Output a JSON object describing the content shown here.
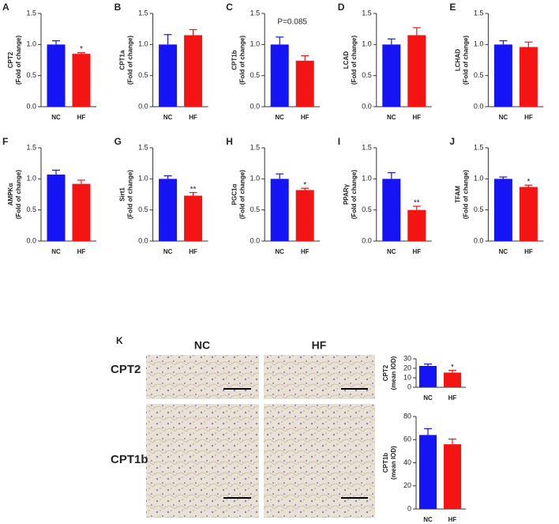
{
  "chart_data": [
    {
      "type": "bar",
      "panel": "A",
      "ylabel": [
        "CPT2",
        "(Fold of change)"
      ],
      "categories": [
        "NC",
        "HF"
      ],
      "values": [
        1.0,
        0.85
      ],
      "errors": [
        0.06,
        0.02
      ],
      "significance": [
        null,
        "*"
      ],
      "colors": [
        "#1414f5",
        "#f51414"
      ],
      "ylim": [
        0,
        1.5
      ],
      "yticks": [
        {
          "value": 0,
          "label": "0.0"
        },
        0.5,
        {
          "value": 1,
          "label": "1.0"
        },
        1.5
      ]
    },
    {
      "type": "bar",
      "panel": "B",
      "ylabel": [
        "CPT1a",
        "(Fold of change)"
      ],
      "categories": [
        "NC",
        "HF"
      ],
      "values": [
        1.0,
        1.15
      ],
      "errors": [
        0.16,
        0.09
      ],
      "colors": [
        "#1414f5",
        "#f51414"
      ],
      "ylim": [
        0,
        1.5
      ],
      "yticks": [
        {
          "value": 0,
          "label": "0.0"
        },
        0.5,
        {
          "value": 1,
          "label": "1.0"
        },
        1.5
      ]
    },
    {
      "type": "bar",
      "panel": "C",
      "ylabel": [
        "CPT1b",
        "(Fold of change)"
      ],
      "annotation": "P=0.085",
      "categories": [
        "NC",
        "HF"
      ],
      "values": [
        1.0,
        0.74
      ],
      "errors": [
        0.12,
        0.08
      ],
      "colors": [
        "#1414f5",
        "#f51414"
      ],
      "ylim": [
        0,
        1.5
      ],
      "yticks": [
        {
          "value": 0,
          "label": "0.0"
        },
        0.5,
        {
          "value": 1,
          "label": "1.0"
        },
        1.5
      ]
    },
    {
      "type": "bar",
      "panel": "D",
      "ylabel": [
        "LCAD",
        "(Fold of change)"
      ],
      "categories": [
        "NC",
        "HF"
      ],
      "values": [
        1.0,
        1.15
      ],
      "errors": [
        0.09,
        0.12
      ],
      "colors": [
        "#1414f5",
        "#f51414"
      ],
      "ylim": [
        0,
        1.5
      ],
      "yticks": [
        {
          "value": 0,
          "label": "0.0"
        },
        0.5,
        {
          "value": 1,
          "label": "1.0"
        },
        1.5
      ]
    },
    {
      "type": "bar",
      "panel": "E",
      "ylabel": [
        "LCHAD",
        "(Fold of change)"
      ],
      "categories": [
        "NC",
        "HF"
      ],
      "values": [
        1.0,
        0.96
      ],
      "errors": [
        0.06,
        0.08
      ],
      "colors": [
        "#1414f5",
        "#f51414"
      ],
      "ylim": [
        0,
        1.5
      ],
      "yticks": [
        {
          "value": 0,
          "label": "0.0"
        },
        0.5,
        {
          "value": 1,
          "label": "1.0"
        },
        1.5
      ]
    },
    {
      "type": "bar",
      "panel": "F",
      "ylabel": [
        "AMPKα",
        "(Fold of change)"
      ],
      "categories": [
        "NC",
        "HF"
      ],
      "values": [
        1.07,
        0.92
      ],
      "errors": [
        0.07,
        0.06
      ],
      "colors": [
        "#1414f5",
        "#f51414"
      ],
      "ylim": [
        0,
        1.5
      ],
      "yticks": [
        {
          "value": 0,
          "label": "0.0"
        },
        0.5,
        {
          "value": 1,
          "label": "1.0"
        },
        1.5
      ]
    },
    {
      "type": "bar",
      "panel": "G",
      "ylabel": [
        "Sirt1",
        "(Fold of change)"
      ],
      "categories": [
        "NC",
        "HF"
      ],
      "values": [
        1.0,
        0.73
      ],
      "errors": [
        0.05,
        0.05
      ],
      "significance": [
        null,
        "**"
      ],
      "colors": [
        "#1414f5",
        "#f51414"
      ],
      "ylim": [
        0,
        1.5
      ],
      "yticks": [
        {
          "value": 0,
          "label": "0.0"
        },
        0.5,
        {
          "value": 1,
          "label": "1.0"
        },
        1.5
      ]
    },
    {
      "type": "bar",
      "panel": "H",
      "ylabel": [
        "PGC1α",
        "(Fold of change)"
      ],
      "categories": [
        "NC",
        "HF"
      ],
      "values": [
        1.0,
        0.82
      ],
      "errors": [
        0.08,
        0.03
      ],
      "significance": [
        null,
        "*"
      ],
      "colors": [
        "#1414f5",
        "#f51414"
      ],
      "ylim": [
        0,
        1.5
      ],
      "yticks": [
        {
          "value": 0,
          "label": "0.0"
        },
        0.5,
        {
          "value": 1,
          "label": "1.0"
        },
        1.5
      ]
    },
    {
      "type": "bar",
      "panel": "I",
      "ylabel": [
        "PPARγ",
        "(Fold of change)"
      ],
      "categories": [
        "NC",
        "HF"
      ],
      "values": [
        1.0,
        0.5
      ],
      "errors": [
        0.1,
        0.06
      ],
      "significance": [
        null,
        "**"
      ],
      "colors": [
        "#1414f5",
        "#f51414"
      ],
      "ylim": [
        0,
        1.5
      ],
      "yticks": [
        {
          "value": 0,
          "label": "0.0"
        },
        0.5,
        {
          "value": 1,
          "label": "1.0"
        },
        1.5
      ]
    },
    {
      "type": "bar",
      "panel": "J",
      "ylabel": [
        "TFAM",
        "(Fold of change)"
      ],
      "categories": [
        "NC",
        "HF"
      ],
      "values": [
        1.0,
        0.87
      ],
      "errors": [
        0.03,
        0.03
      ],
      "significance": [
        null,
        "*"
      ],
      "colors": [
        "#1414f5",
        "#f51414"
      ],
      "ylim": [
        0,
        1.5
      ],
      "yticks": [
        {
          "value": 0,
          "label": "0.0"
        },
        0.5,
        {
          "value": 1,
          "label": "1.0"
        },
        1.5
      ]
    },
    {
      "type": "bar",
      "ylabel": [
        "CPT2",
        "(mean IOD)"
      ],
      "categories": [
        "NC",
        "HF"
      ],
      "values": [
        22.5,
        15.5
      ],
      "errors": [
        2.0,
        2.3
      ],
      "significance": [
        null,
        "*"
      ],
      "colors": [
        "#1414f5",
        "#f51414"
      ],
      "ylim": [
        0,
        30
      ],
      "yticks": [
        0,
        10,
        20,
        30
      ]
    },
    {
      "type": "bar",
      "ylabel": [
        "CPT1b",
        "(mean IOD)"
      ],
      "categories": [
        "NC",
        "HF"
      ],
      "values": [
        64,
        56
      ],
      "errors": [
        5.5,
        4.5
      ],
      "colors": [
        "#1414f5",
        "#f51414"
      ],
      "ylim": [
        0,
        80
      ],
      "yticks": [
        0,
        20,
        40,
        60,
        80
      ]
    }
  ],
  "panel_k": {
    "panel": "K",
    "columns": [
      "NC",
      "HF"
    ],
    "rows": [
      "CPT2",
      "CPT1b"
    ]
  }
}
